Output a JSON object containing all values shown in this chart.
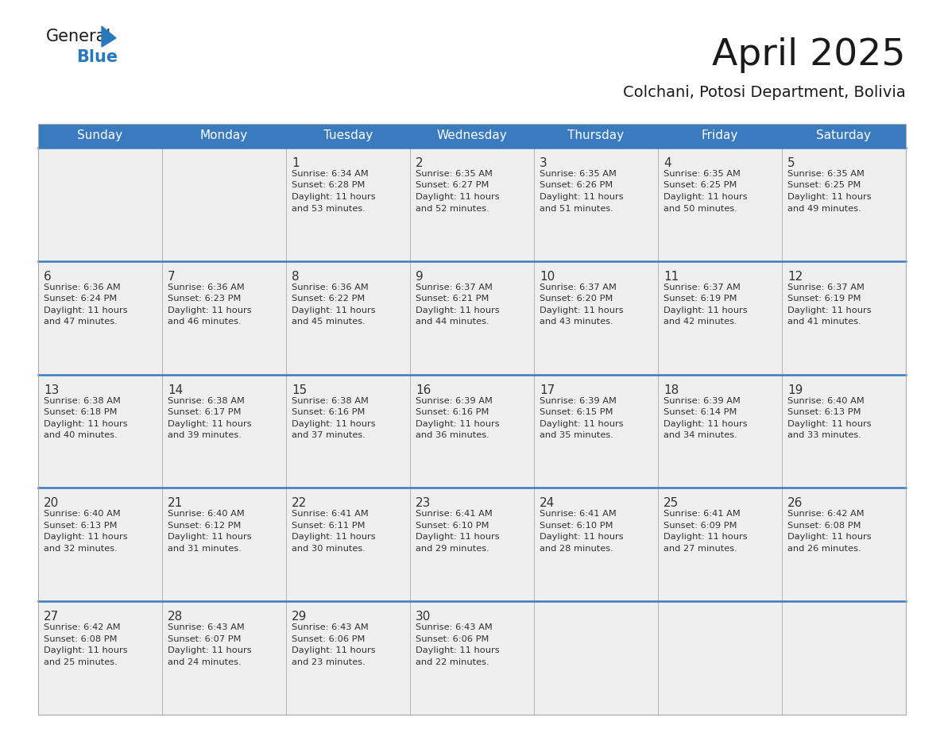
{
  "title": "April 2025",
  "subtitle": "Colchani, Potosi Department, Bolivia",
  "days_of_week": [
    "Sunday",
    "Monday",
    "Tuesday",
    "Wednesday",
    "Thursday",
    "Friday",
    "Saturday"
  ],
  "header_bg": "#3a7abf",
  "header_text": "#ffffff",
  "row_bg": "#efefef",
  "cell_bg": "#ffffff",
  "cell_text_color": "#333333",
  "divider_color": "#3a7abf",
  "title_color": "#1a1a1a",
  "subtitle_color": "#1a1a1a",
  "logo_general_color": "#1a1a1a",
  "logo_blue_color": "#2878be",
  "border_color": "#aaaaaa",
  "calendar_data": [
    [
      {
        "day": null,
        "info": null
      },
      {
        "day": null,
        "info": null
      },
      {
        "day": 1,
        "info": "Sunrise: 6:34 AM\nSunset: 6:28 PM\nDaylight: 11 hours\nand 53 minutes."
      },
      {
        "day": 2,
        "info": "Sunrise: 6:35 AM\nSunset: 6:27 PM\nDaylight: 11 hours\nand 52 minutes."
      },
      {
        "day": 3,
        "info": "Sunrise: 6:35 AM\nSunset: 6:26 PM\nDaylight: 11 hours\nand 51 minutes."
      },
      {
        "day": 4,
        "info": "Sunrise: 6:35 AM\nSunset: 6:25 PM\nDaylight: 11 hours\nand 50 minutes."
      },
      {
        "day": 5,
        "info": "Sunrise: 6:35 AM\nSunset: 6:25 PM\nDaylight: 11 hours\nand 49 minutes."
      }
    ],
    [
      {
        "day": 6,
        "info": "Sunrise: 6:36 AM\nSunset: 6:24 PM\nDaylight: 11 hours\nand 47 minutes."
      },
      {
        "day": 7,
        "info": "Sunrise: 6:36 AM\nSunset: 6:23 PM\nDaylight: 11 hours\nand 46 minutes."
      },
      {
        "day": 8,
        "info": "Sunrise: 6:36 AM\nSunset: 6:22 PM\nDaylight: 11 hours\nand 45 minutes."
      },
      {
        "day": 9,
        "info": "Sunrise: 6:37 AM\nSunset: 6:21 PM\nDaylight: 11 hours\nand 44 minutes."
      },
      {
        "day": 10,
        "info": "Sunrise: 6:37 AM\nSunset: 6:20 PM\nDaylight: 11 hours\nand 43 minutes."
      },
      {
        "day": 11,
        "info": "Sunrise: 6:37 AM\nSunset: 6:19 PM\nDaylight: 11 hours\nand 42 minutes."
      },
      {
        "day": 12,
        "info": "Sunrise: 6:37 AM\nSunset: 6:19 PM\nDaylight: 11 hours\nand 41 minutes."
      }
    ],
    [
      {
        "day": 13,
        "info": "Sunrise: 6:38 AM\nSunset: 6:18 PM\nDaylight: 11 hours\nand 40 minutes."
      },
      {
        "day": 14,
        "info": "Sunrise: 6:38 AM\nSunset: 6:17 PM\nDaylight: 11 hours\nand 39 minutes."
      },
      {
        "day": 15,
        "info": "Sunrise: 6:38 AM\nSunset: 6:16 PM\nDaylight: 11 hours\nand 37 minutes."
      },
      {
        "day": 16,
        "info": "Sunrise: 6:39 AM\nSunset: 6:16 PM\nDaylight: 11 hours\nand 36 minutes."
      },
      {
        "day": 17,
        "info": "Sunrise: 6:39 AM\nSunset: 6:15 PM\nDaylight: 11 hours\nand 35 minutes."
      },
      {
        "day": 18,
        "info": "Sunrise: 6:39 AM\nSunset: 6:14 PM\nDaylight: 11 hours\nand 34 minutes."
      },
      {
        "day": 19,
        "info": "Sunrise: 6:40 AM\nSunset: 6:13 PM\nDaylight: 11 hours\nand 33 minutes."
      }
    ],
    [
      {
        "day": 20,
        "info": "Sunrise: 6:40 AM\nSunset: 6:13 PM\nDaylight: 11 hours\nand 32 minutes."
      },
      {
        "day": 21,
        "info": "Sunrise: 6:40 AM\nSunset: 6:12 PM\nDaylight: 11 hours\nand 31 minutes."
      },
      {
        "day": 22,
        "info": "Sunrise: 6:41 AM\nSunset: 6:11 PM\nDaylight: 11 hours\nand 30 minutes."
      },
      {
        "day": 23,
        "info": "Sunrise: 6:41 AM\nSunset: 6:10 PM\nDaylight: 11 hours\nand 29 minutes."
      },
      {
        "day": 24,
        "info": "Sunrise: 6:41 AM\nSunset: 6:10 PM\nDaylight: 11 hours\nand 28 minutes."
      },
      {
        "day": 25,
        "info": "Sunrise: 6:41 AM\nSunset: 6:09 PM\nDaylight: 11 hours\nand 27 minutes."
      },
      {
        "day": 26,
        "info": "Sunrise: 6:42 AM\nSunset: 6:08 PM\nDaylight: 11 hours\nand 26 minutes."
      }
    ],
    [
      {
        "day": 27,
        "info": "Sunrise: 6:42 AM\nSunset: 6:08 PM\nDaylight: 11 hours\nand 25 minutes."
      },
      {
        "day": 28,
        "info": "Sunrise: 6:43 AM\nSunset: 6:07 PM\nDaylight: 11 hours\nand 24 minutes."
      },
      {
        "day": 29,
        "info": "Sunrise: 6:43 AM\nSunset: 6:06 PM\nDaylight: 11 hours\nand 23 minutes."
      },
      {
        "day": 30,
        "info": "Sunrise: 6:43 AM\nSunset: 6:06 PM\nDaylight: 11 hours\nand 22 minutes."
      },
      {
        "day": null,
        "info": null
      },
      {
        "day": null,
        "info": null
      },
      {
        "day": null,
        "info": null
      }
    ]
  ],
  "fig_width": 11.88,
  "fig_height": 9.18,
  "dpi": 100
}
